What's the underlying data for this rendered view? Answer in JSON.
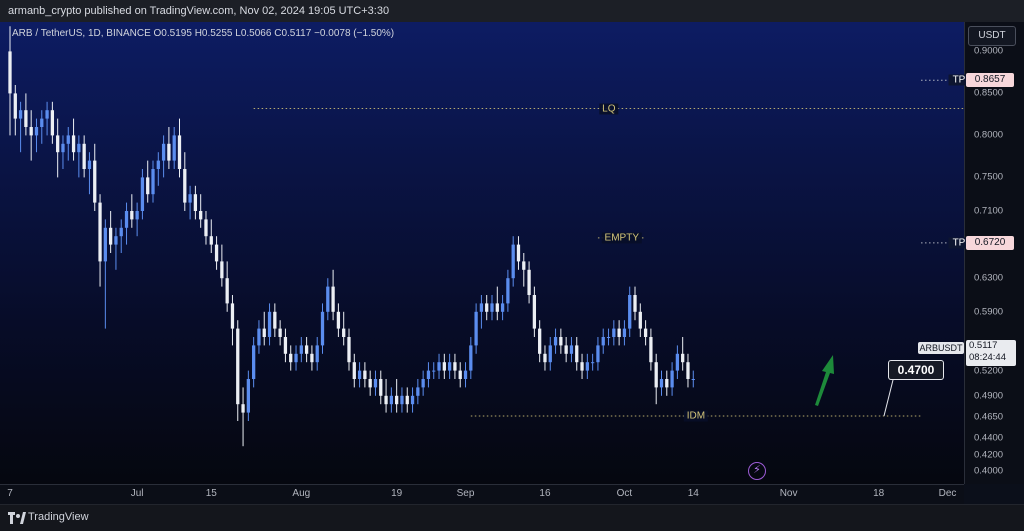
{
  "header": {
    "publisher": "armanb_crypto published on TradingView.com, Nov 02, 2024 19:05 UTC+3:30"
  },
  "legend": {
    "symbol": "ARB / TetherUS, 1D, BINANCE",
    "open": "O0.5195",
    "high": "H0.5255",
    "low": "L0.5066",
    "close": "C0.5117",
    "change": "−0.0078 (−1.50%)"
  },
  "price_axis": {
    "unit": "USDT"
  },
  "footer": {
    "brand": "TradingView"
  },
  "markers": {
    "symbol_badge": "ARBUSDT",
    "last_price": "0.5117",
    "countdown": "08:24:44",
    "target_label": "0.4700"
  },
  "colors": {
    "up": "#5b8def",
    "down": "#eceff4",
    "target_badge": "#f7d7db",
    "arrow": "#1d8a3a",
    "annotation": "#d4c57a"
  },
  "chart_data": {
    "type": "candlestick",
    "ylim": [
      0.385,
      0.935
    ],
    "y_ticks": [
      0.9,
      0.85,
      0.8,
      0.75,
      0.71,
      0.67,
      0.63,
      0.59,
      0.55,
      0.52,
      0.49,
      0.465,
      0.44,
      0.42,
      0.4
    ],
    "y_tick_labels": [
      "0.9000",
      "0.8500",
      "0.8000",
      "0.7500",
      "0.7100",
      "0.6700",
      "0.6300",
      "0.5900",
      "0.5500",
      "0.5200",
      "0.4900",
      "0.4650",
      "0.4400",
      "0.4200",
      "0.4000"
    ],
    "x_ticks": [
      {
        "label": "7",
        "date": "2024-06-07"
      },
      {
        "label": "Jul",
        "date": "2024-07-01"
      },
      {
        "label": "15",
        "date": "2024-07-15"
      },
      {
        "label": "Aug",
        "date": "2024-08-01"
      },
      {
        "label": "19",
        "date": "2024-08-19"
      },
      {
        "label": "Sep",
        "date": "2024-09-01"
      },
      {
        "label": "16",
        "date": "2024-09-16"
      },
      {
        "label": "Oct",
        "date": "2024-10-01"
      },
      {
        "label": "14",
        "date": "2024-10-14"
      },
      {
        "label": "Nov",
        "date": "2024-11-01"
      },
      {
        "label": "18",
        "date": "2024-11-18"
      },
      {
        "label": "Dec",
        "date": "2024-12-01"
      }
    ],
    "first_date": "2024-06-07",
    "x_end_date": "2024-12-06",
    "ohlc": [
      [
        0.9,
        0.93,
        0.8,
        0.85
      ],
      [
        0.85,
        0.86,
        0.8,
        0.82
      ],
      [
        0.82,
        0.84,
        0.78,
        0.83
      ],
      [
        0.83,
        0.85,
        0.8,
        0.81
      ],
      [
        0.81,
        0.83,
        0.77,
        0.8
      ],
      [
        0.8,
        0.82,
        0.78,
        0.81
      ],
      [
        0.81,
        0.83,
        0.79,
        0.82
      ],
      [
        0.82,
        0.84,
        0.8,
        0.83
      ],
      [
        0.83,
        0.84,
        0.79,
        0.8
      ],
      [
        0.8,
        0.82,
        0.75,
        0.78
      ],
      [
        0.78,
        0.8,
        0.76,
        0.79
      ],
      [
        0.79,
        0.81,
        0.77,
        0.8
      ],
      [
        0.8,
        0.82,
        0.77,
        0.78
      ],
      [
        0.78,
        0.8,
        0.75,
        0.79
      ],
      [
        0.79,
        0.8,
        0.75,
        0.76
      ],
      [
        0.76,
        0.78,
        0.73,
        0.77
      ],
      [
        0.77,
        0.79,
        0.71,
        0.72
      ],
      [
        0.72,
        0.73,
        0.62,
        0.65
      ],
      [
        0.65,
        0.7,
        0.57,
        0.69
      ],
      [
        0.69,
        0.71,
        0.66,
        0.67
      ],
      [
        0.67,
        0.69,
        0.64,
        0.68
      ],
      [
        0.68,
        0.7,
        0.66,
        0.69
      ],
      [
        0.69,
        0.72,
        0.67,
        0.71
      ],
      [
        0.71,
        0.73,
        0.69,
        0.7
      ],
      [
        0.7,
        0.72,
        0.68,
        0.71
      ],
      [
        0.71,
        0.76,
        0.7,
        0.75
      ],
      [
        0.75,
        0.77,
        0.72,
        0.73
      ],
      [
        0.73,
        0.77,
        0.72,
        0.76
      ],
      [
        0.76,
        0.78,
        0.74,
        0.77
      ],
      [
        0.77,
        0.8,
        0.75,
        0.79
      ],
      [
        0.79,
        0.81,
        0.76,
        0.77
      ],
      [
        0.77,
        0.81,
        0.76,
        0.8
      ],
      [
        0.8,
        0.82,
        0.75,
        0.76
      ],
      [
        0.76,
        0.78,
        0.71,
        0.72
      ],
      [
        0.72,
        0.74,
        0.7,
        0.73
      ],
      [
        0.73,
        0.74,
        0.7,
        0.71
      ],
      [
        0.71,
        0.73,
        0.69,
        0.7
      ],
      [
        0.7,
        0.71,
        0.67,
        0.68
      ],
      [
        0.68,
        0.7,
        0.66,
        0.67
      ],
      [
        0.67,
        0.68,
        0.64,
        0.65
      ],
      [
        0.65,
        0.67,
        0.62,
        0.63
      ],
      [
        0.63,
        0.65,
        0.59,
        0.6
      ],
      [
        0.6,
        0.61,
        0.55,
        0.57
      ],
      [
        0.57,
        0.58,
        0.46,
        0.48
      ],
      [
        0.48,
        0.5,
        0.43,
        0.47
      ],
      [
        0.47,
        0.52,
        0.46,
        0.51
      ],
      [
        0.51,
        0.56,
        0.5,
        0.55
      ],
      [
        0.55,
        0.58,
        0.54,
        0.57
      ],
      [
        0.57,
        0.59,
        0.55,
        0.56
      ],
      [
        0.56,
        0.6,
        0.55,
        0.59
      ],
      [
        0.59,
        0.6,
        0.56,
        0.57
      ],
      [
        0.57,
        0.58,
        0.55,
        0.56
      ],
      [
        0.56,
        0.57,
        0.53,
        0.54
      ],
      [
        0.54,
        0.55,
        0.52,
        0.53
      ],
      [
        0.53,
        0.55,
        0.52,
        0.54
      ],
      [
        0.54,
        0.56,
        0.53,
        0.55
      ],
      [
        0.55,
        0.56,
        0.53,
        0.54
      ],
      [
        0.54,
        0.55,
        0.52,
        0.53
      ],
      [
        0.53,
        0.56,
        0.52,
        0.55
      ],
      [
        0.55,
        0.6,
        0.54,
        0.59
      ],
      [
        0.59,
        0.63,
        0.58,
        0.62
      ],
      [
        0.62,
        0.64,
        0.58,
        0.59
      ],
      [
        0.59,
        0.6,
        0.56,
        0.57
      ],
      [
        0.57,
        0.59,
        0.55,
        0.56
      ],
      [
        0.56,
        0.57,
        0.52,
        0.53
      ],
      [
        0.53,
        0.54,
        0.5,
        0.51
      ],
      [
        0.51,
        0.53,
        0.5,
        0.52
      ],
      [
        0.52,
        0.53,
        0.5,
        0.51
      ],
      [
        0.51,
        0.52,
        0.49,
        0.5
      ],
      [
        0.5,
        0.52,
        0.49,
        0.51
      ],
      [
        0.51,
        0.52,
        0.48,
        0.49
      ],
      [
        0.49,
        0.51,
        0.47,
        0.48
      ],
      [
        0.48,
        0.5,
        0.47,
        0.49
      ],
      [
        0.49,
        0.51,
        0.47,
        0.48
      ],
      [
        0.48,
        0.5,
        0.47,
        0.49
      ],
      [
        0.49,
        0.5,
        0.47,
        0.48
      ],
      [
        0.48,
        0.5,
        0.47,
        0.49
      ],
      [
        0.49,
        0.51,
        0.48,
        0.5
      ],
      [
        0.5,
        0.52,
        0.49,
        0.51
      ],
      [
        0.51,
        0.53,
        0.5,
        0.52
      ],
      [
        0.52,
        0.53,
        0.51,
        0.52
      ],
      [
        0.52,
        0.54,
        0.51,
        0.53
      ],
      [
        0.53,
        0.54,
        0.51,
        0.52
      ],
      [
        0.52,
        0.54,
        0.51,
        0.53
      ],
      [
        0.53,
        0.54,
        0.51,
        0.52
      ],
      [
        0.52,
        0.53,
        0.5,
        0.51
      ],
      [
        0.51,
        0.53,
        0.5,
        0.52
      ],
      [
        0.52,
        0.56,
        0.51,
        0.55
      ],
      [
        0.55,
        0.6,
        0.54,
        0.59
      ],
      [
        0.59,
        0.61,
        0.57,
        0.6
      ],
      [
        0.6,
        0.61,
        0.58,
        0.59
      ],
      [
        0.59,
        0.61,
        0.58,
        0.6
      ],
      [
        0.6,
        0.62,
        0.58,
        0.59
      ],
      [
        0.59,
        0.61,
        0.58,
        0.6
      ],
      [
        0.6,
        0.64,
        0.59,
        0.63
      ],
      [
        0.63,
        0.68,
        0.62,
        0.67
      ],
      [
        0.67,
        0.68,
        0.64,
        0.65
      ],
      [
        0.65,
        0.66,
        0.62,
        0.64
      ],
      [
        0.64,
        0.65,
        0.6,
        0.61
      ],
      [
        0.61,
        0.62,
        0.56,
        0.57
      ],
      [
        0.57,
        0.58,
        0.53,
        0.54
      ],
      [
        0.54,
        0.55,
        0.52,
        0.53
      ],
      [
        0.53,
        0.56,
        0.52,
        0.55
      ],
      [
        0.55,
        0.57,
        0.54,
        0.56
      ],
      [
        0.56,
        0.57,
        0.54,
        0.55
      ],
      [
        0.55,
        0.56,
        0.53,
        0.54
      ],
      [
        0.54,
        0.56,
        0.53,
        0.55
      ],
      [
        0.55,
        0.56,
        0.52,
        0.53
      ],
      [
        0.53,
        0.54,
        0.51,
        0.52
      ],
      [
        0.52,
        0.54,
        0.51,
        0.53
      ],
      [
        0.53,
        0.54,
        0.52,
        0.53
      ],
      [
        0.53,
        0.56,
        0.52,
        0.55
      ],
      [
        0.55,
        0.57,
        0.54,
        0.56
      ],
      [
        0.56,
        0.57,
        0.55,
        0.56
      ],
      [
        0.56,
        0.58,
        0.55,
        0.57
      ],
      [
        0.57,
        0.58,
        0.55,
        0.56
      ],
      [
        0.56,
        0.58,
        0.55,
        0.57
      ],
      [
        0.57,
        0.62,
        0.56,
        0.61
      ],
      [
        0.61,
        0.62,
        0.58,
        0.59
      ],
      [
        0.59,
        0.6,
        0.56,
        0.57
      ],
      [
        0.57,
        0.58,
        0.55,
        0.56
      ],
      [
        0.56,
        0.57,
        0.52,
        0.53
      ],
      [
        0.53,
        0.54,
        0.48,
        0.5
      ],
      [
        0.5,
        0.52,
        0.49,
        0.51
      ],
      [
        0.51,
        0.52,
        0.49,
        0.5
      ],
      [
        0.5,
        0.53,
        0.49,
        0.52
      ],
      [
        0.52,
        0.55,
        0.51,
        0.54
      ],
      [
        0.54,
        0.56,
        0.52,
        0.53
      ],
      [
        0.53,
        0.54,
        0.5,
        0.51
      ],
      [
        0.51,
        0.52,
        0.5,
        0.51
      ]
    ],
    "annotations": [
      {
        "label": "LQ",
        "value": 0.832,
        "from_date": "2024-07-23",
        "to_date": "2024-12-06",
        "style": "dotted"
      },
      {
        "label": "EMPTY",
        "value": 0.678,
        "from_date": "2024-09-26",
        "to_date": "2024-10-05",
        "style": "dotted"
      },
      {
        "label": "IDM",
        "value": 0.466,
        "from_date": "2024-09-02",
        "to_date": "2024-11-26",
        "style": "dotted"
      },
      {
        "label": "TP 2",
        "value": 0.8657,
        "from_date": "2024-11-26",
        "to_date": "2024-12-06",
        "style": "dotted",
        "badge": "0.8657"
      },
      {
        "label": "TP 1",
        "value": 0.672,
        "from_date": "2024-11-26",
        "to_date": "2024-12-06",
        "style": "dotted",
        "badge": "0.6720"
      }
    ]
  }
}
